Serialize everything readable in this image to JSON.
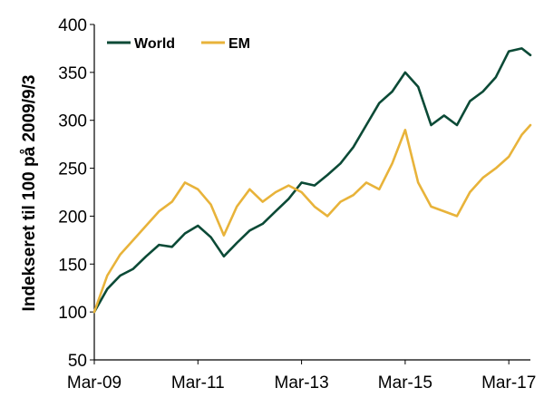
{
  "chart_data": {
    "type": "line",
    "title": "",
    "xlabel": "",
    "ylabel": "Indekseret til 100 på 2009/9/3",
    "ylim": [
      50,
      400
    ],
    "yticks": [
      50,
      100,
      150,
      200,
      250,
      300,
      350,
      400
    ],
    "xlim": [
      "2009-03",
      "2017-08"
    ],
    "xticks": [
      "Mar-09",
      "Mar-11",
      "Mar-13",
      "Mar-15",
      "Mar-17"
    ],
    "legend_position": "top-left",
    "grid": false,
    "x": [
      "2009-03",
      "2009-06",
      "2009-09",
      "2009-12",
      "2010-03",
      "2010-06",
      "2010-09",
      "2010-12",
      "2011-03",
      "2011-06",
      "2011-09",
      "2011-12",
      "2012-03",
      "2012-06",
      "2012-09",
      "2012-12",
      "2013-03",
      "2013-06",
      "2013-09",
      "2013-12",
      "2014-03",
      "2014-06",
      "2014-09",
      "2014-12",
      "2015-03",
      "2015-06",
      "2015-09",
      "2015-12",
      "2016-03",
      "2016-06",
      "2016-09",
      "2016-12",
      "2017-03",
      "2017-06",
      "2017-08"
    ],
    "series": [
      {
        "name": "World",
        "color": "#0b4a36",
        "values": [
          100,
          124,
          138,
          145,
          158,
          170,
          168,
          182,
          190,
          178,
          158,
          172,
          185,
          192,
          205,
          218,
          235,
          232,
          243,
          255,
          272,
          295,
          318,
          330,
          350,
          335,
          295,
          305,
          295,
          320,
          330,
          345,
          372,
          375,
          368
        ]
      },
      {
        "name": "EM",
        "color": "#e8b33a",
        "values": [
          100,
          138,
          160,
          175,
          190,
          205,
          215,
          235,
          228,
          212,
          180,
          210,
          228,
          215,
          225,
          232,
          225,
          210,
          200,
          215,
          222,
          235,
          228,
          255,
          290,
          235,
          210,
          205,
          200,
          225,
          240,
          250,
          262,
          285,
          295
        ]
      }
    ]
  }
}
